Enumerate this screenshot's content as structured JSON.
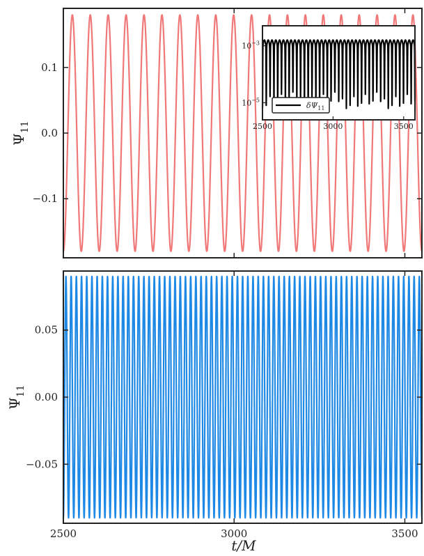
{
  "chart_data": [
    {
      "panel": "top",
      "type": "line",
      "xlim": [
        2500,
        3550
      ],
      "ylim": [
        -0.19,
        0.19
      ],
      "yticks": [
        -0.1,
        0.0,
        0.1
      ],
      "ytick_labels": [
        "−0.1",
        "0.0",
        "0.1"
      ],
      "ylabel": "Ψ",
      "ylabel_sub": "11",
      "series": [
        {
          "color": "#f07878",
          "form": "sinusoid",
          "amplitude": 0.18,
          "cycles_in_range": 20,
          "x_start": 2500,
          "x_end": 3550
        }
      ],
      "inset": {
        "type": "line",
        "yscale": "log",
        "xlim": [
          2500,
          3580
        ],
        "ylim_log10": [
          -5.6,
          -2.3
        ],
        "xticks": [
          2500,
          3000,
          3500
        ],
        "xtick_labels": [
          "2500",
          "3000",
          "3500"
        ],
        "yticks_log10": [
          -3,
          -5
        ],
        "ytick_labels": [
          {
            "base": "10",
            "exp": "−3"
          },
          {
            "base": "10",
            "exp": "−5"
          }
        ],
        "legend": {
          "placement": "lower-left",
          "label_prefix": "δΨ",
          "label_sub": "11"
        },
        "series": [
          {
            "color": "#000000",
            "form": "oscillating-log-error",
            "peak_log10": -2.8,
            "floor_log10": -3.1,
            "dip_min_log10": -5.2,
            "cycles_in_range": 40
          }
        ]
      }
    },
    {
      "panel": "bottom",
      "type": "line",
      "xlim": [
        2500,
        3550
      ],
      "ylim": [
        -0.094,
        0.094
      ],
      "yticks": [
        -0.05,
        0.0,
        0.05
      ],
      "ytick_labels": [
        "−0.05",
        "0.00",
        "0.05"
      ],
      "xticks": [
        2500,
        3000,
        3500
      ],
      "xtick_labels": [
        "2500",
        "3000",
        "3500"
      ],
      "xlabel": "t/M",
      "ylabel": "Ψ",
      "ylabel_sub": "11",
      "series": [
        {
          "color": "#1e88e5",
          "form": "sinusoid",
          "amplitude": 0.09,
          "cycles_in_range": 69,
          "x_start": 2500,
          "x_end": 3550
        }
      ]
    }
  ]
}
